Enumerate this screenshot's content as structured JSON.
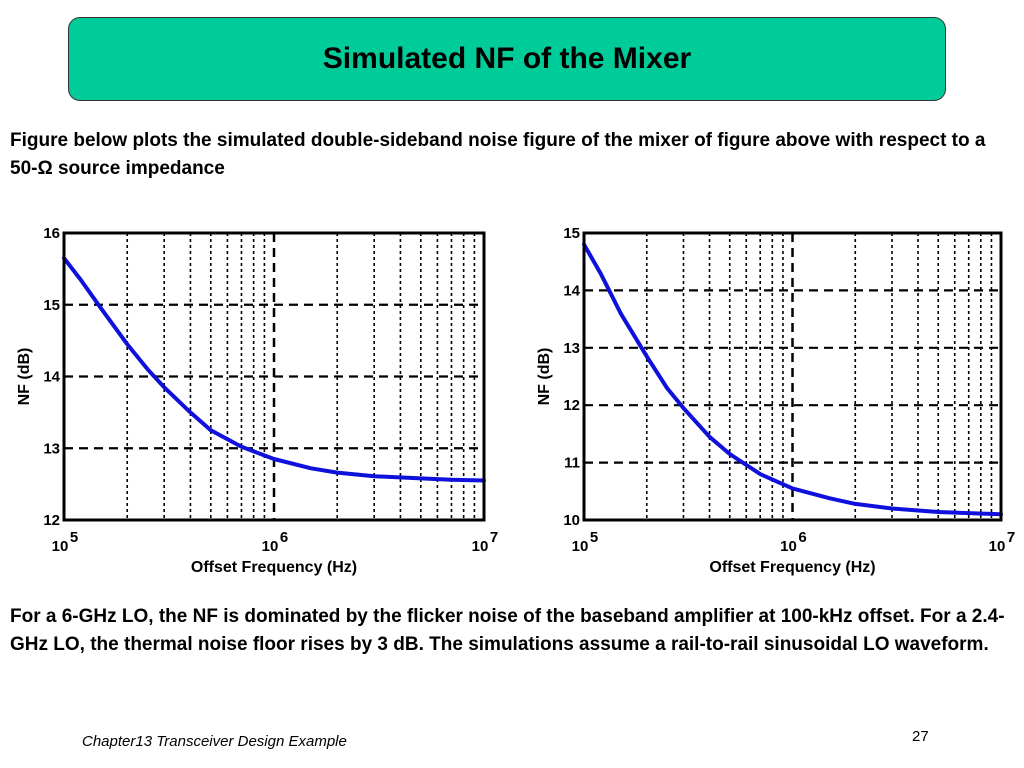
{
  "slide": {
    "title": "Simulated NF of the Mixer",
    "intro": "Figure below plots the simulated double-sideband noise figure of the mixer of figure above with respect to a 50-Ω source impedance",
    "summary": "For a 6-GHz LO, the NF is dominated by the flicker noise of the baseband amplifier at 100-kHz offset. For a 2.4-GHz LO, the thermal noise floor rises by 3 dB. The simulations assume a rail-to-rail sinusoidal LO waveform.",
    "footer": "Chapter13 Transceiver Design Example",
    "page_number": "27"
  },
  "colors": {
    "curve": "#1010dd",
    "title_box": "#00cc99"
  },
  "chart_data": [
    {
      "type": "line",
      "xlabel": "Offset Frequency (Hz)",
      "ylabel": "NF (dB)",
      "xscale": "log",
      "xlim": [
        100000,
        10000000
      ],
      "ylim": [
        12,
        16
      ],
      "yticks": [
        12,
        13,
        14,
        15,
        16
      ],
      "xticks": [
        100000,
        1000000,
        10000000
      ],
      "xtick_base": "10",
      "xtick_exponents": [
        "5",
        "6",
        "7"
      ],
      "grid": true,
      "series": [
        {
          "x": [
            100000,
            120000,
            150000,
            200000,
            250000,
            300000,
            400000,
            500000,
            700000,
            1000000,
            1500000,
            2000000,
            3000000,
            5000000,
            7000000,
            10000000
          ],
          "y": [
            15.65,
            15.35,
            14.95,
            14.45,
            14.1,
            13.85,
            13.5,
            13.25,
            13.02,
            12.85,
            12.72,
            12.66,
            12.61,
            12.58,
            12.56,
            12.55
          ]
        }
      ]
    },
    {
      "type": "line",
      "xlabel": "Offset Frequency (Hz)",
      "ylabel": "NF (dB)",
      "xscale": "log",
      "xlim": [
        100000,
        10000000
      ],
      "ylim": [
        10,
        15
      ],
      "yticks": [
        10,
        11,
        12,
        13,
        14,
        15
      ],
      "xticks": [
        100000,
        1000000,
        10000000
      ],
      "xtick_base": "10",
      "xtick_exponents": [
        "5",
        "6",
        "7"
      ],
      "grid": true,
      "series": [
        {
          "x": [
            100000,
            120000,
            150000,
            200000,
            250000,
            300000,
            400000,
            500000,
            700000,
            1000000,
            1500000,
            2000000,
            3000000,
            5000000,
            7000000,
            10000000
          ],
          "y": [
            14.8,
            14.3,
            13.6,
            12.85,
            12.3,
            11.95,
            11.45,
            11.15,
            10.8,
            10.55,
            10.38,
            10.28,
            10.2,
            10.14,
            10.12,
            10.1
          ]
        }
      ]
    }
  ]
}
